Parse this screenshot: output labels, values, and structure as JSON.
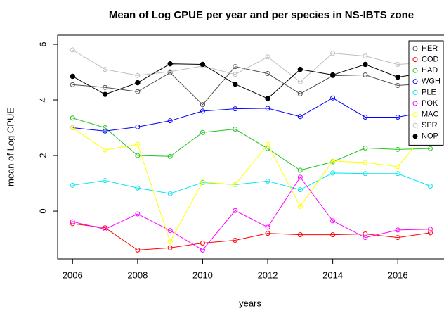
{
  "chart_data": {
    "type": "line",
    "title": "Mean of Log CPUE per year and per species in NS-IBTS zone",
    "x_label": "years",
    "y_label": "mean of Log CPUE",
    "x": [
      2006,
      2007,
      2008,
      2009,
      2010,
      2011,
      2012,
      2013,
      2014,
      2015,
      2016,
      2017
    ],
    "xlim": [
      2005.54,
      2017.4
    ],
    "xticks": [
      2006,
      2008,
      2010,
      2012,
      2014,
      2016
    ],
    "ylim": [
      -1.72,
      6.33
    ],
    "yticks": [
      0,
      2,
      4,
      6
    ],
    "legend": "top-right",
    "series": [
      {
        "name": "HER",
        "color": "#4d4d4d",
        "marker": "open",
        "values": [
          4.55,
          4.45,
          4.3,
          4.98,
          3.83,
          5.2,
          4.95,
          4.22,
          4.87,
          4.9,
          4.52,
          4.6
        ]
      },
      {
        "name": "COD",
        "color": "#ff0000",
        "marker": "open",
        "values": [
          -0.45,
          -0.6,
          -1.4,
          -1.32,
          -1.15,
          -1.05,
          -0.8,
          -0.85,
          -0.85,
          -0.82,
          -0.95,
          -0.78
        ]
      },
      {
        "name": "HAD",
        "color": "#22c322",
        "marker": "open",
        "values": [
          3.35,
          3.0,
          2.0,
          1.97,
          2.83,
          2.95,
          2.25,
          1.47,
          1.77,
          2.27,
          2.22,
          2.25
        ]
      },
      {
        "name": "WGH",
        "color": "#0000ff",
        "marker": "open",
        "values": [
          3.0,
          2.88,
          3.03,
          3.25,
          3.6,
          3.68,
          3.7,
          3.4,
          4.07,
          3.38,
          3.38,
          3.6
        ]
      },
      {
        "name": "PLE",
        "color": "#00e5ee",
        "marker": "open",
        "values": [
          0.93,
          1.1,
          0.83,
          0.63,
          1.03,
          0.95,
          1.08,
          0.77,
          1.37,
          1.35,
          1.35,
          0.9
        ]
      },
      {
        "name": "POK",
        "color": "#ff00ff",
        "marker": "open",
        "values": [
          -0.38,
          -0.65,
          -0.1,
          -0.7,
          -1.4,
          0.02,
          -0.58,
          1.22,
          -0.35,
          -0.95,
          -0.68,
          -0.65
        ]
      },
      {
        "name": "MAC",
        "color": "#ffff00",
        "marker": "open",
        "values": [
          3.0,
          2.2,
          2.4,
          -1.1,
          1.05,
          0.95,
          2.4,
          0.17,
          1.8,
          1.75,
          1.6,
          3.0
        ]
      },
      {
        "name": "SPR",
        "color": "#bebebe",
        "marker": "open",
        "values": [
          5.8,
          5.1,
          4.88,
          5.02,
          5.22,
          4.92,
          5.55,
          4.65,
          5.68,
          5.58,
          5.28,
          5.35
        ]
      },
      {
        "name": "NOP",
        "color": "#000000",
        "marker": "filled",
        "values": [
          4.85,
          4.2,
          4.62,
          5.3,
          5.28,
          4.57,
          4.05,
          5.1,
          4.9,
          5.28,
          4.82,
          5.0
        ]
      }
    ]
  }
}
